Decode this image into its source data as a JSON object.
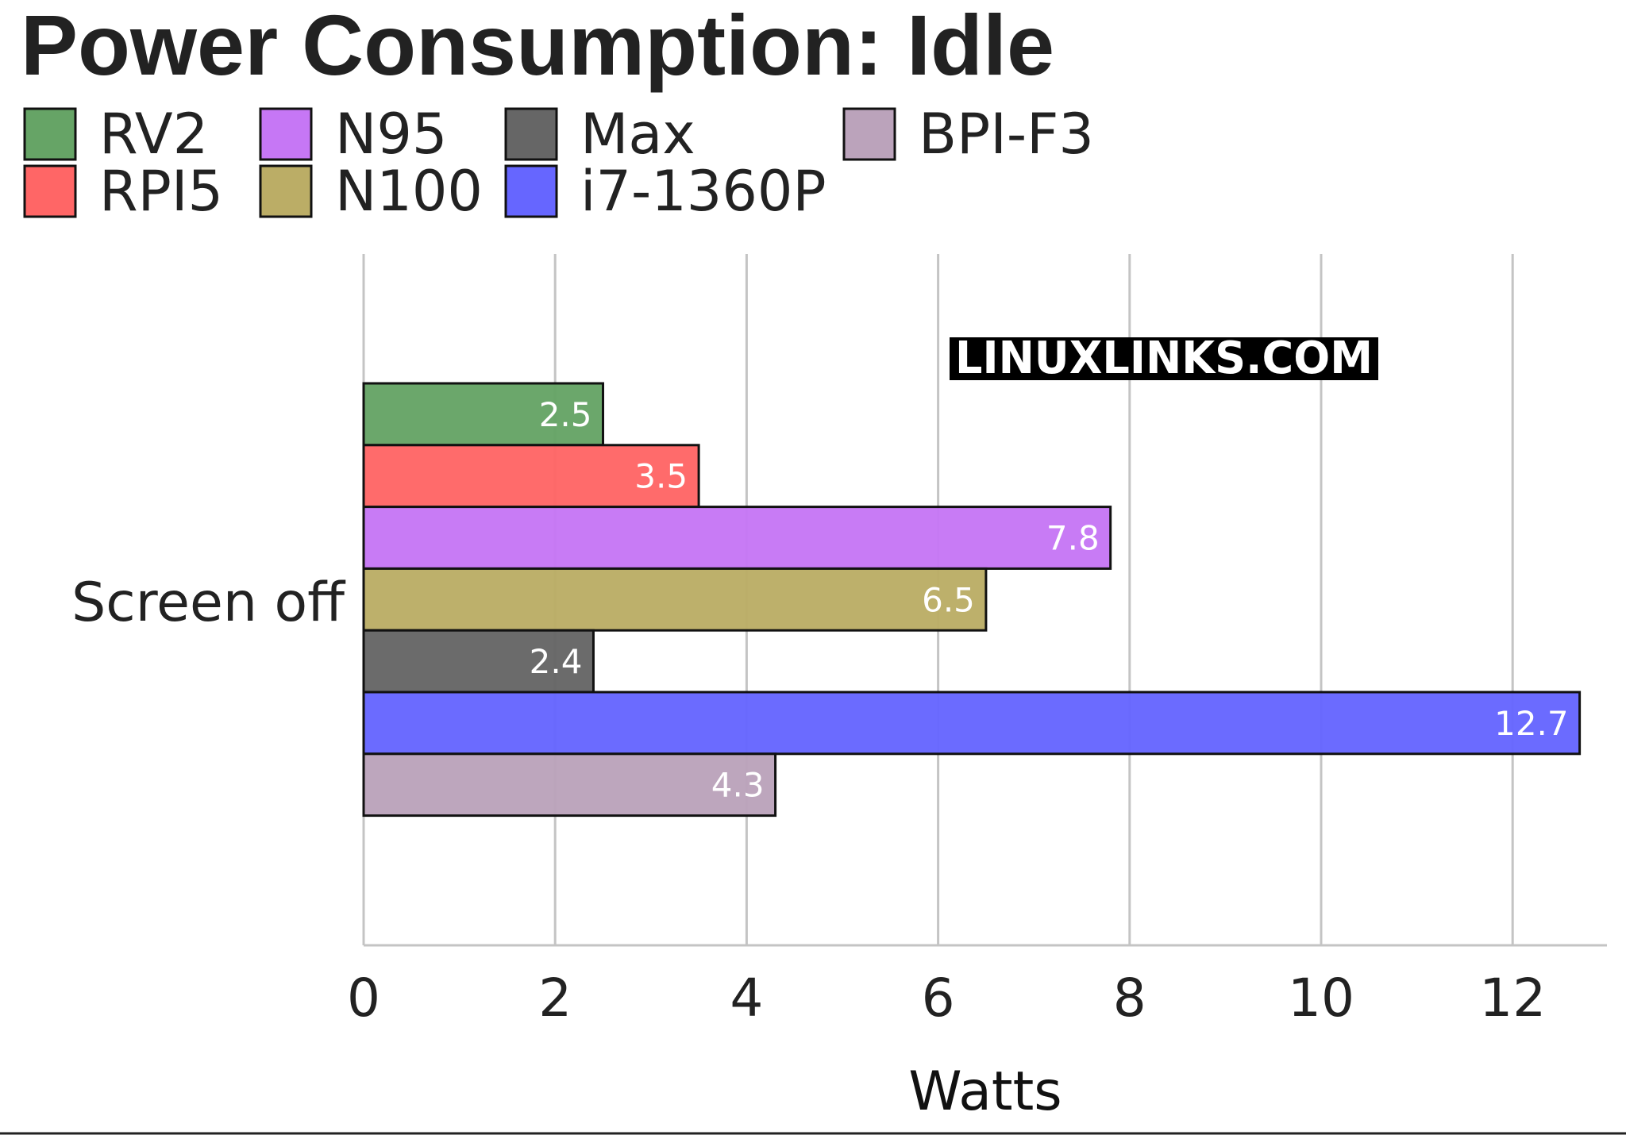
{
  "chart_data": {
    "type": "bar",
    "orientation": "horizontal",
    "title": "Power Consumption: Idle",
    "xlabel": "Watts",
    "ylabel": "",
    "categories": [
      "Screen off"
    ],
    "xlim": [
      0,
      13
    ],
    "xticks": [
      0,
      2,
      4,
      6,
      8,
      10,
      12
    ],
    "grid": true,
    "legend_position": "top",
    "watermark": "LINUXLINKS.COM",
    "series": [
      {
        "name": "RV2",
        "values": [
          2.5
        ],
        "color": "#66a466"
      },
      {
        "name": "RPI5",
        "values": [
          3.5
        ],
        "color": "#ff6666"
      },
      {
        "name": "N95",
        "values": [
          7.8
        ],
        "color": "#c677f5"
      },
      {
        "name": "N100",
        "values": [
          6.5
        ],
        "color": "#bbad66"
      },
      {
        "name": "Max",
        "values": [
          2.4
        ],
        "color": "#666666"
      },
      {
        "name": "i7-1360P",
        "values": [
          12.7
        ],
        "color": "#6666ff"
      },
      {
        "name": "BPI-F3",
        "values": [
          4.3
        ],
        "color": "#bba3bb"
      }
    ]
  }
}
